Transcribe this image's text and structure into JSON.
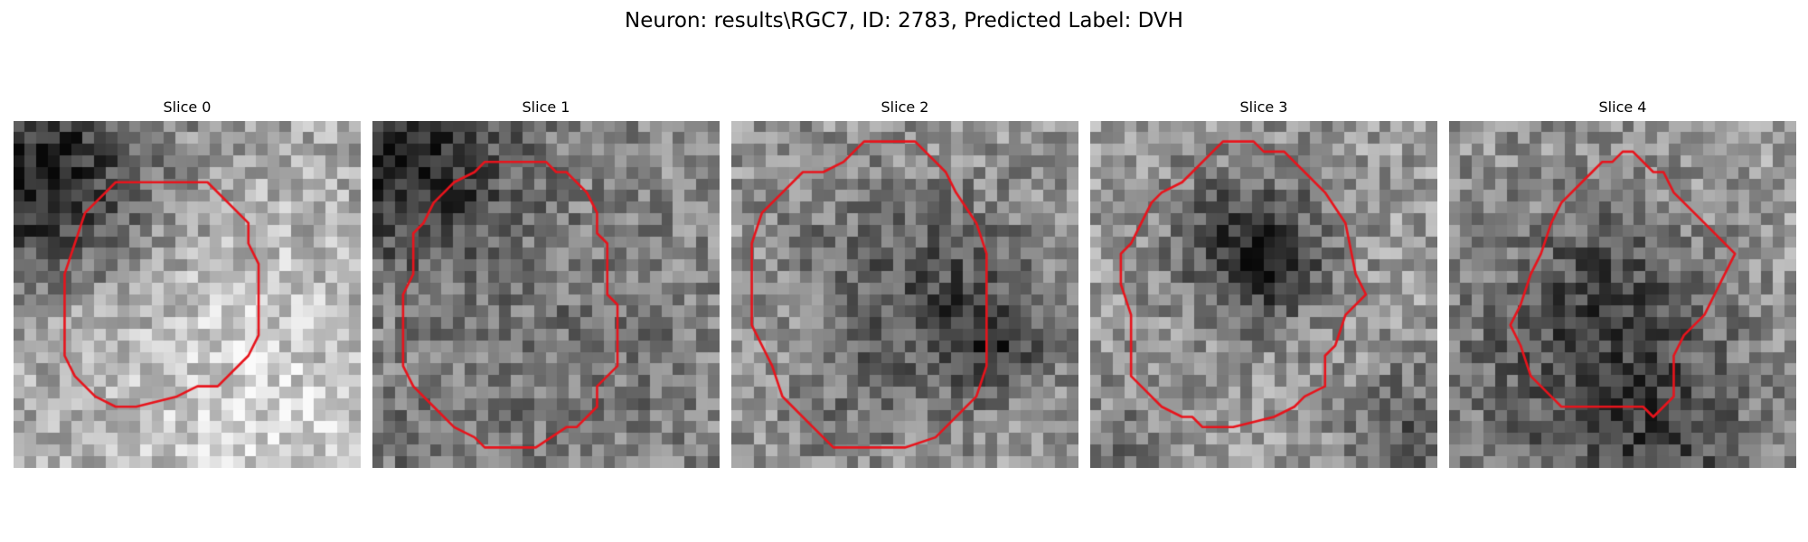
{
  "figure": {
    "title": "Neuron: results\\RGC7, ID: 2783, Predicted Label: DVH"
  },
  "panels": [
    {
      "title": "Slice 0",
      "image": "grayscale-microscopy-slice",
      "outline": "red-roi-contour"
    },
    {
      "title": "Slice 1",
      "image": "grayscale-microscopy-slice",
      "outline": "red-roi-contour"
    },
    {
      "title": "Slice 2",
      "image": "grayscale-microscopy-slice",
      "outline": "red-roi-contour"
    },
    {
      "title": "Slice 3",
      "image": "grayscale-microscopy-slice",
      "outline": "red-roi-contour"
    },
    {
      "title": "Slice 4",
      "image": "grayscale-microscopy-slice",
      "outline": "red-roi-contour"
    }
  ],
  "colors": {
    "outline": "#e8141c",
    "background": "#ffffff"
  }
}
